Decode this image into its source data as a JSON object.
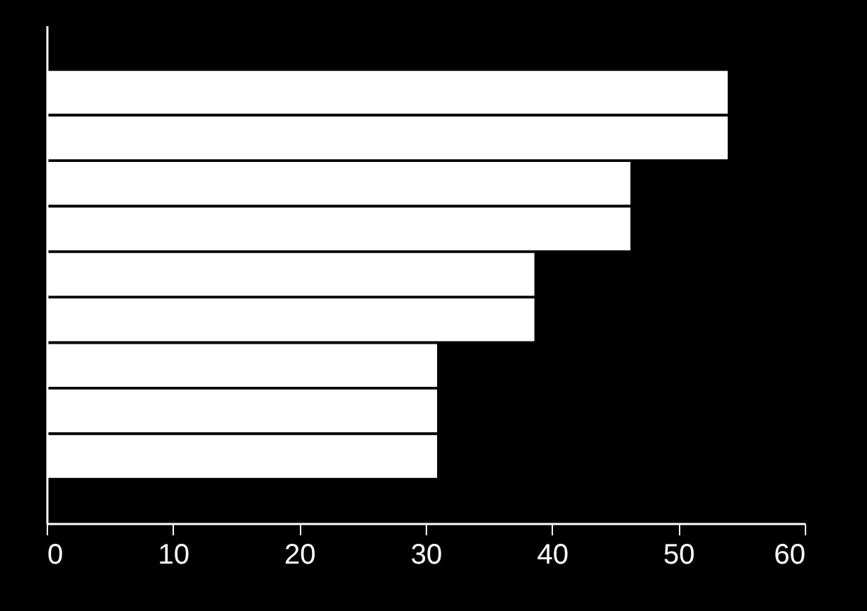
{
  "chart_data": {
    "type": "bar",
    "orientation": "horizontal",
    "categories": [
      null,
      null,
      null,
      null,
      null,
      null,
      null,
      null,
      null
    ],
    "values": [
      53.9,
      53.9,
      46.2,
      46.2,
      38.6,
      38.6,
      30.9,
      30.9,
      30.9
    ],
    "color": "#ffffff",
    "xlim": [
      0,
      60
    ],
    "xticks": [
      0,
      10,
      20,
      30,
      40,
      50,
      60
    ],
    "grid": false,
    "tick_labels": "x"
  }
}
